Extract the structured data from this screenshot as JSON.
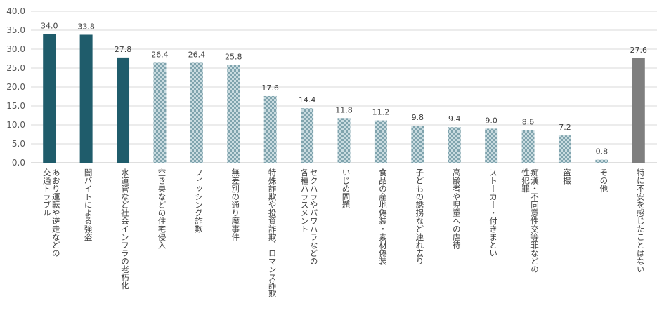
{
  "chart_data": {
    "type": "bar",
    "ylim": [
      0,
      40
    ],
    "yticks": [
      "0.0",
      "5.0",
      "10.0",
      "15.0",
      "20.0",
      "25.0",
      "30.0",
      "35.0",
      "40.0"
    ],
    "grid": true,
    "legend": "none",
    "categories": [
      [
        "交通トラブル",
        "あおり運転や逆走などの"
      ],
      [
        "闇バイトによる強盗"
      ],
      [
        "水道管など社会インフラの老朽化"
      ],
      [
        "空き巣などの住宅侵入"
      ],
      [
        "フィッシング詐欺"
      ],
      [
        "無差別の通り魔事件"
      ],
      [
        "特殊詐欺や投資詐欺、ロマンス詐欺"
      ],
      [
        "各種ハラスメント",
        "セクハラやパワハラなどの"
      ],
      [
        "いじめ問題"
      ],
      [
        "食品の産地偽装・素材偽装"
      ],
      [
        "子どもの誘拐など連れ去り"
      ],
      [
        "高齢者や児童への虐待"
      ],
      [
        "ストーカー・付きまとい"
      ],
      [
        "性犯罪",
        "痴漢・不同意性交等罪などの"
      ],
      [
        "盗撮"
      ],
      [
        "その他"
      ],
      [
        "特に不安を感じたことはない"
      ]
    ],
    "values": [
      34.0,
      33.8,
      27.8,
      26.4,
      26.4,
      25.8,
      17.6,
      14.4,
      11.8,
      11.2,
      9.8,
      9.4,
      9.0,
      8.6,
      7.2,
      0.8,
      27.6
    ],
    "value_labels": [
      "34.0",
      "33.8",
      "27.8",
      "26.4",
      "26.4",
      "25.8",
      "17.6",
      "14.4",
      "11.8",
      "11.2",
      "9.8",
      "9.4",
      "9.0",
      "8.6",
      "7.2",
      "0.8",
      "27.6"
    ],
    "styles": [
      "top",
      "top",
      "top",
      "other",
      "other",
      "other",
      "other",
      "other",
      "other",
      "other",
      "other",
      "other",
      "other",
      "other",
      "other",
      "other",
      "none"
    ],
    "colors": {
      "top": "#1f5c6b",
      "other_base": "#c9dbe0",
      "other_pattern": "#7fa3ad",
      "none": "#7f7f7f",
      "grid": "#d9d9d9",
      "axis": "#bfbfbf"
    }
  }
}
